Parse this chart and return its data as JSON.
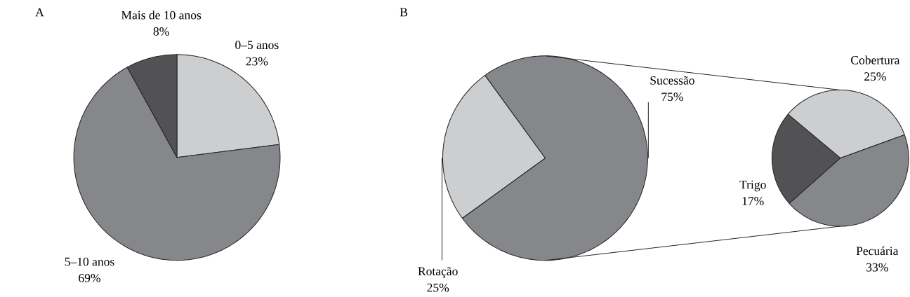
{
  "chart_data": [
    {
      "type": "pie",
      "title": "A",
      "categories": [
        "0–5 anos",
        "5–10 anos",
        "Mais de 10 anos"
      ],
      "values": [
        23,
        69,
        8
      ],
      "value_labels": [
        "23%",
        "69%",
        "8%"
      ],
      "colors": [
        "#cdcecf",
        "#86878b",
        "#525254"
      ]
    },
    {
      "type": "pie",
      "title": "B",
      "categories": [
        "Sucessão",
        "Rotação"
      ],
      "values": [
        75,
        25
      ],
      "value_labels": [
        "75%",
        "25%"
      ],
      "colors": [
        "#86878b",
        "#cdcecf"
      ]
    },
    {
      "type": "pie",
      "categories": [
        "Cobertura",
        "Pecuária",
        "Trigo"
      ],
      "values": [
        25,
        33,
        17
      ],
      "value_labels": [
        "25%",
        "33%",
        "17%"
      ],
      "colors": [
        "#cdcecf",
        "#86878b",
        "#525254"
      ]
    }
  ]
}
